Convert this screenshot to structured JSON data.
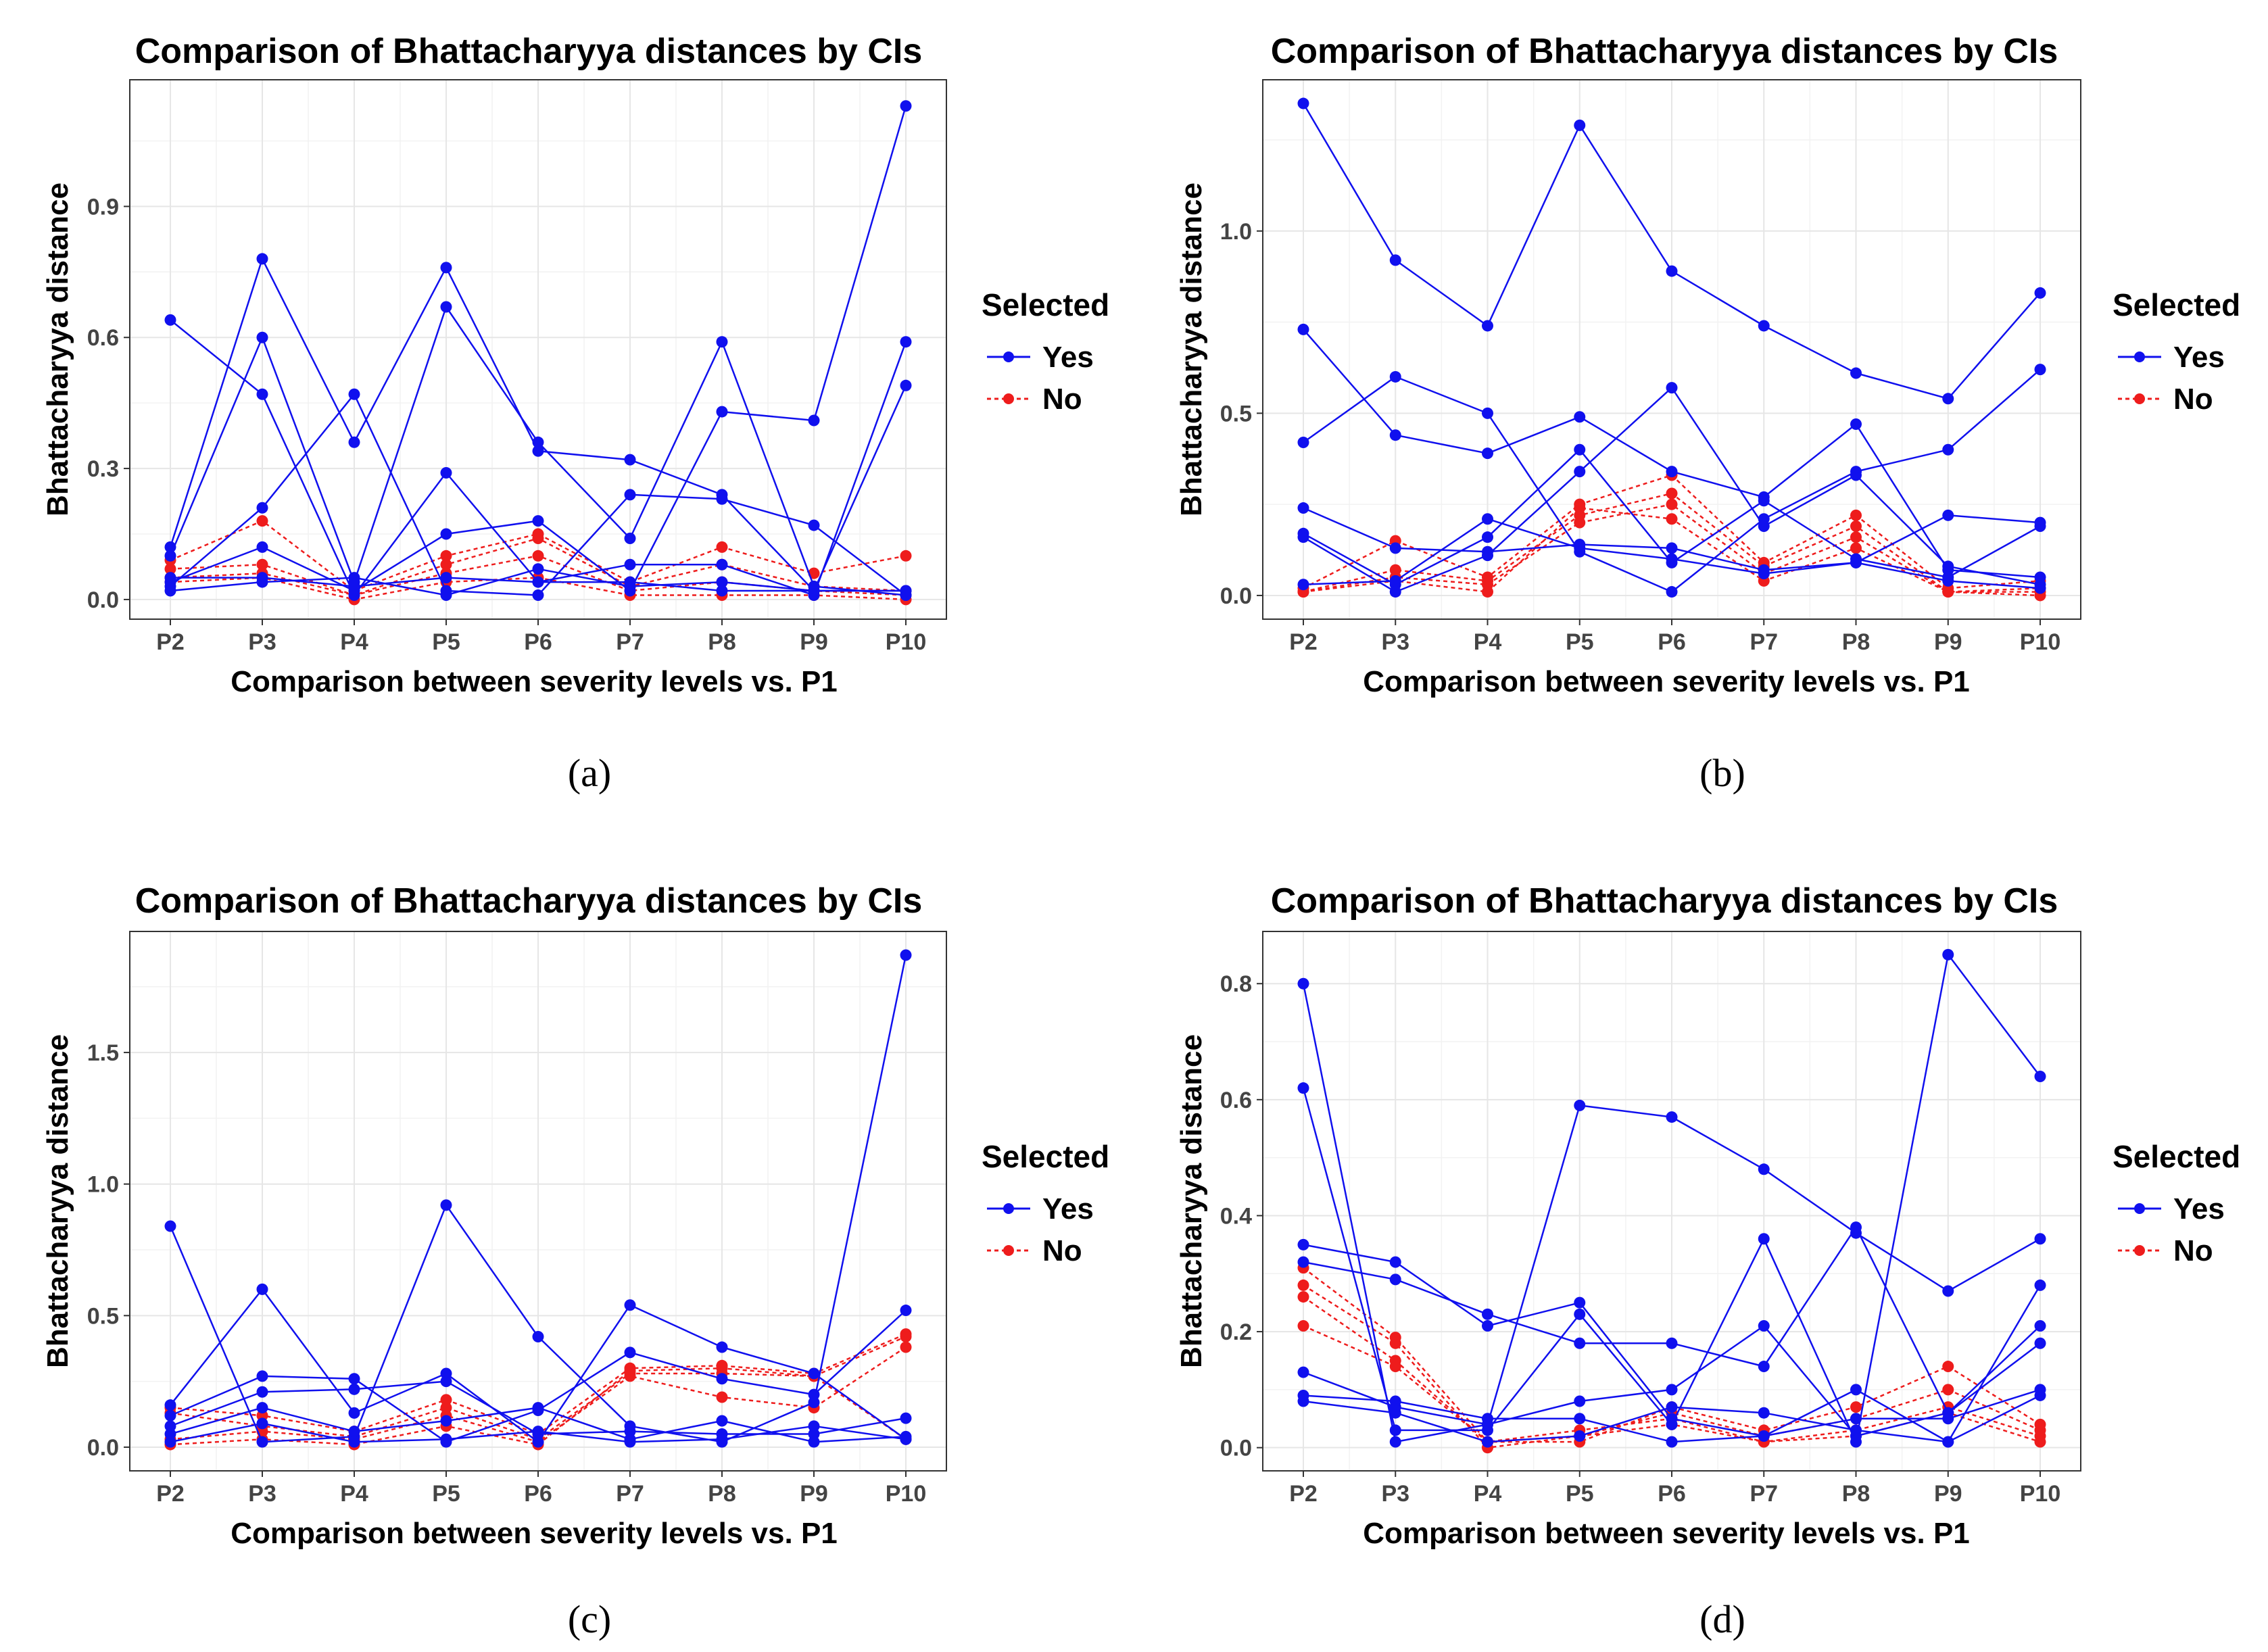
{
  "colors": {
    "yes": "#1010ee",
    "no": "#ee1c1c",
    "grid_major": "#e6e6e6",
    "grid_minor": "#f2f2f2",
    "frame": "#333333",
    "tick_text": "#4d4d4d"
  },
  "legend": {
    "title": "Selected",
    "items": [
      "Yes",
      "No"
    ]
  },
  "chart_data": [
    {
      "type": "line",
      "caption": "(a)",
      "title": "Comparison of Bhattacharyya distances by CIs",
      "xlabel": "Comparison between severity levels vs. P1",
      "ylabel": "Bhattacharyya distance",
      "categories": [
        "P2",
        "P3",
        "P4",
        "P5",
        "P6",
        "P7",
        "P8",
        "P9",
        "P10"
      ],
      "ylim": [
        -0.045,
        1.19
      ],
      "yticks": [
        0,
        0.3,
        0.6,
        0.9
      ],
      "yticklabels": [
        "0.0",
        "0.3",
        "0.6",
        "0.9"
      ],
      "series": [
        {
          "name": "Yes",
          "values": [
            0.64,
            0.47,
            0.01,
            0.29,
            0.04,
            0.04,
            0.02,
            0.02,
            0.02
          ]
        },
        {
          "name": "Yes",
          "values": [
            0.12,
            0.78,
            0.36,
            0.76,
            0.34,
            0.32,
            0.24,
            0.02,
            0.02
          ]
        },
        {
          "name": "Yes",
          "values": [
            0.1,
            0.6,
            0.04,
            0.67,
            0.36,
            0.14,
            0.59,
            0.03,
            0.01
          ]
        },
        {
          "name": "Yes",
          "values": [
            0.03,
            0.21,
            0.47,
            0.02,
            0.01,
            0.24,
            0.23,
            0.17,
            0.01
          ]
        },
        {
          "name": "Yes",
          "values": [
            0.04,
            0.12,
            0.02,
            0.15,
            0.18,
            0.02,
            0.43,
            0.41,
            1.13
          ]
        },
        {
          "name": "Yes",
          "values": [
            0.05,
            0.05,
            0.03,
            0.05,
            0.04,
            0.08,
            0.08,
            0.01,
            0.59
          ]
        },
        {
          "name": "Yes",
          "values": [
            0.02,
            0.04,
            0.05,
            0.01,
            0.07,
            0.03,
            0.04,
            0.02,
            0.49
          ]
        },
        {
          "name": "No",
          "values": [
            0.09,
            0.18,
            0.02,
            0.1,
            0.15,
            0.04,
            0.12,
            0.06,
            0.1
          ]
        },
        {
          "name": "No",
          "values": [
            0.07,
            0.08,
            0.01,
            0.08,
            0.14,
            0.03,
            0.08,
            0.03,
            0.02
          ]
        },
        {
          "name": "No",
          "values": [
            0.05,
            0.06,
            0.01,
            0.06,
            0.1,
            0.02,
            0.04,
            0.02,
            0.01
          ]
        },
        {
          "name": "No",
          "values": [
            0.04,
            0.05,
            0.0,
            0.04,
            0.05,
            0.01,
            0.01,
            0.01,
            0.0
          ]
        }
      ]
    },
    {
      "type": "line",
      "caption": "(b)",
      "title": "Comparison of Bhattacharyya distances by CIs",
      "xlabel": "Comparison between severity levels vs. P1",
      "ylabel": "Bhattacharyya distance",
      "categories": [
        "P2",
        "P3",
        "P4",
        "P5",
        "P6",
        "P7",
        "P8",
        "P9",
        "P10"
      ],
      "ylim": [
        -0.065,
        1.415
      ],
      "yticks": [
        0,
        0.5,
        1.0
      ],
      "yticklabels": [
        "0.0",
        "0.5",
        "1.0"
      ],
      "series": [
        {
          "name": "Yes",
          "values": [
            1.35,
            0.92,
            0.74,
            1.29,
            0.89,
            0.74,
            0.61,
            0.54,
            0.83
          ]
        },
        {
          "name": "Yes",
          "values": [
            0.73,
            0.44,
            0.39,
            0.49,
            0.34,
            0.27,
            0.47,
            0.07,
            0.05
          ]
        },
        {
          "name": "Yes",
          "values": [
            0.42,
            0.6,
            0.5,
            0.12,
            0.01,
            0.21,
            0.34,
            0.4,
            0.62
          ]
        },
        {
          "name": "Yes",
          "values": [
            0.24,
            0.13,
            0.12,
            0.14,
            0.13,
            0.07,
            0.09,
            0.22,
            0.2
          ]
        },
        {
          "name": "Yes",
          "values": [
            0.17,
            0.03,
            0.16,
            0.4,
            0.09,
            0.26,
            0.1,
            0.05,
            0.19
          ]
        },
        {
          "name": "Yes",
          "values": [
            0.16,
            0.01,
            0.11,
            0.34,
            0.57,
            0.19,
            0.33,
            0.08,
            0.03
          ]
        },
        {
          "name": "Yes",
          "values": [
            0.03,
            0.04,
            0.21,
            0.13,
            0.1,
            0.06,
            0.09,
            0.04,
            0.02
          ]
        },
        {
          "name": "No",
          "values": [
            0.02,
            0.15,
            0.05,
            0.25,
            0.33,
            0.09,
            0.22,
            0.02,
            0.04
          ]
        },
        {
          "name": "No",
          "values": [
            0.01,
            0.07,
            0.04,
            0.22,
            0.28,
            0.08,
            0.19,
            0.01,
            0.02
          ]
        },
        {
          "name": "No",
          "values": [
            0.01,
            0.05,
            0.03,
            0.2,
            0.25,
            0.06,
            0.16,
            0.01,
            0.01
          ]
        },
        {
          "name": "No",
          "values": [
            0.01,
            0.04,
            0.01,
            0.24,
            0.21,
            0.04,
            0.13,
            0.01,
            0.0
          ]
        }
      ]
    },
    {
      "type": "line",
      "caption": "(c)",
      "title": "Comparison of Bhattacharyya distances by CIs",
      "xlabel": "Comparison between severity levels vs. P1",
      "ylabel": "Bhattacharyya distance",
      "categories": [
        "P2",
        "P3",
        "P4",
        "P5",
        "P6",
        "P7",
        "P8",
        "P9",
        "P10"
      ],
      "ylim": [
        -0.09,
        1.96
      ],
      "yticks": [
        0,
        0.5,
        1.0,
        1.5
      ],
      "yticklabels": [
        "0.0",
        "0.5",
        "1.0",
        "1.5"
      ],
      "series": [
        {
          "name": "Yes",
          "values": [
            0.84,
            0.02,
            0.04,
            0.92,
            0.42,
            0.08,
            0.02,
            0.17,
            1.87
          ]
        },
        {
          "name": "Yes",
          "values": [
            0.16,
            0.6,
            0.13,
            0.28,
            0.02,
            0.54,
            0.38,
            0.28,
            0.03
          ]
        },
        {
          "name": "Yes",
          "values": [
            0.12,
            0.27,
            0.26,
            0.02,
            0.14,
            0.36,
            0.26,
            0.2,
            0.52
          ]
        },
        {
          "name": "Yes",
          "values": [
            0.08,
            0.21,
            0.22,
            0.25,
            0.05,
            0.06,
            0.05,
            0.05,
            0.11
          ]
        },
        {
          "name": "Yes",
          "values": [
            0.05,
            0.15,
            0.06,
            0.1,
            0.15,
            0.03,
            0.1,
            0.02,
            0.04
          ]
        },
        {
          "name": "Yes",
          "values": [
            0.02,
            0.09,
            0.02,
            0.03,
            0.06,
            0.02,
            0.03,
            0.08,
            0.03
          ]
        },
        {
          "name": "No",
          "values": [
            0.15,
            0.12,
            0.06,
            0.18,
            0.05,
            0.3,
            0.31,
            0.28,
            0.43
          ]
        },
        {
          "name": "No",
          "values": [
            0.13,
            0.08,
            0.04,
            0.15,
            0.03,
            0.28,
            0.28,
            0.27,
            0.42
          ]
        },
        {
          "name": "No",
          "values": [
            0.03,
            0.06,
            0.03,
            0.12,
            0.02,
            0.27,
            0.19,
            0.15,
            0.38
          ]
        },
        {
          "name": "No",
          "values": [
            0.01,
            0.03,
            0.01,
            0.08,
            0.01,
            0.29,
            0.3,
            0.27,
            0.03
          ]
        }
      ]
    },
    {
      "type": "line",
      "caption": "(d)",
      "title": "Comparison of Bhattacharyya distances by CIs",
      "xlabel": "Comparison between severity levels vs. P1",
      "ylabel": "Bhattacharyya distance",
      "categories": [
        "P2",
        "P3",
        "P4",
        "P5",
        "P6",
        "P7",
        "P8",
        "P9",
        "P10"
      ],
      "ylim": [
        -0.04,
        0.89
      ],
      "yticks": [
        0,
        0.2,
        0.4,
        0.6,
        0.8
      ],
      "yticklabels": [
        "0.0",
        "0.2",
        "0.4",
        "0.6",
        "0.8"
      ],
      "series": [
        {
          "name": "Yes",
          "values": [
            0.8,
            0.01,
            0.04,
            0.59,
            0.57,
            0.48,
            0.37,
            0.27,
            0.36
          ]
        },
        {
          "name": "Yes",
          "values": [
            0.62,
            0.03,
            0.03,
            0.23,
            0.04,
            0.36,
            0.01,
            0.85,
            0.64
          ]
        },
        {
          "name": "Yes",
          "values": [
            0.35,
            0.32,
            0.21,
            0.25,
            0.05,
            0.02,
            0.1,
            0.01,
            0.28
          ]
        },
        {
          "name": "Yes",
          "values": [
            0.32,
            0.29,
            0.23,
            0.18,
            0.18,
            0.14,
            0.38,
            0.06,
            0.21
          ]
        },
        {
          "name": "Yes",
          "values": [
            0.13,
            0.07,
            0.04,
            0.08,
            0.1,
            0.21,
            0.02,
            0.06,
            0.18
          ]
        },
        {
          "name": "Yes",
          "values": [
            0.09,
            0.08,
            0.05,
            0.05,
            0.01,
            0.02,
            0.05,
            0.05,
            0.1
          ]
        },
        {
          "name": "Yes",
          "values": [
            0.08,
            0.06,
            0.01,
            0.02,
            0.07,
            0.06,
            0.03,
            0.01,
            0.09
          ]
        },
        {
          "name": "No",
          "values": [
            0.31,
            0.19,
            0.01,
            0.01,
            0.07,
            0.03,
            0.07,
            0.14,
            0.04
          ]
        },
        {
          "name": "No",
          "values": [
            0.28,
            0.18,
            0.0,
            0.02,
            0.06,
            0.02,
            0.05,
            0.1,
            0.03
          ]
        },
        {
          "name": "No",
          "values": [
            0.26,
            0.15,
            0.01,
            0.03,
            0.05,
            0.01,
            0.03,
            0.07,
            0.02
          ]
        },
        {
          "name": "No",
          "values": [
            0.21,
            0.14,
            0.01,
            0.02,
            0.04,
            0.01,
            0.02,
            0.06,
            0.01
          ]
        }
      ]
    }
  ]
}
